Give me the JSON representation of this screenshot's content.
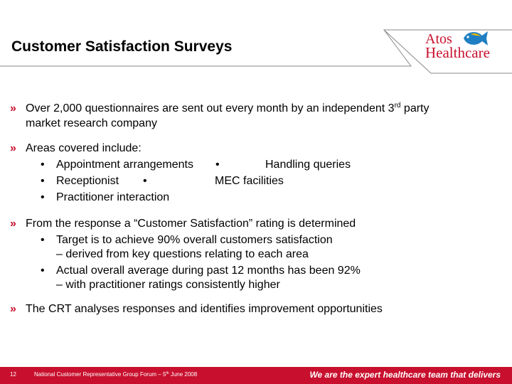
{
  "slide": {
    "title": "Customer Satisfaction Surveys"
  },
  "logo": {
    "line1": "Atos",
    "line2": "Healthcare"
  },
  "bullet_marker": "»",
  "sub_marker": "•",
  "bullets": {
    "b1_line1_pre": "Over 2,000 questionnaires are sent out every month by an independent 3",
    "b1_sup": "rd",
    "b1_line1_post": " party",
    "b1_line2": "market research company",
    "b2": "Areas covered include:",
    "b2_items": {
      "i1": "Appointment arrangements",
      "i2": "Handling queries",
      "i3": "Receptionist",
      "i4": "MEC facilities",
      "i5": "Practitioner interaction"
    },
    "b3": "From the response a “Customer Satisfaction” rating is determined",
    "b3_items": {
      "i1_line1": "Target is to achieve 90% overall customers satisfaction",
      "i1_line2": "– derived from key questions relating to each area",
      "i2_line1": "Actual overall average during past 12 months has been 92%",
      "i2_line2": "– with practitioner ratings consistently higher"
    },
    "b4": "The CRT analyses responses and identifies improvement opportunities"
  },
  "footer": {
    "page_number": "12",
    "event": "National Customer Representative Group Forum – 5",
    "event_sup": "th",
    "event_post": " June 2008",
    "tagline": "We are the expert healthcare team that delivers"
  },
  "colors": {
    "accent": "#c8102e",
    "fish_blue": "#1f7fc2",
    "fish_yellow": "#f2b400"
  }
}
